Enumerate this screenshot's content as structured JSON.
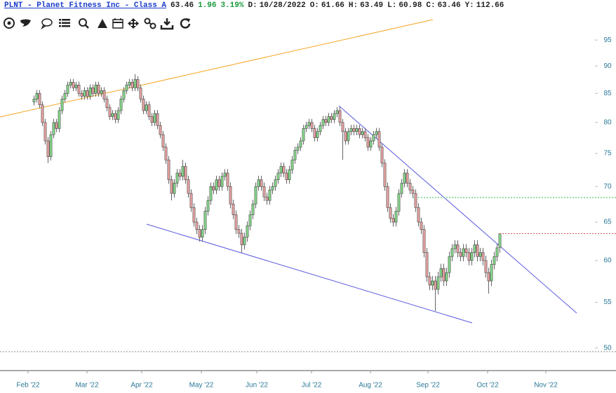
{
  "header": {
    "symbol": "PLNT - Planet Fitness Inc - Class A",
    "last": "63.46",
    "change": "1.96",
    "change_pct": "3.19%",
    "date_label": "D:",
    "date": "10/28/2022",
    "open_label": "O:",
    "open": "61.66",
    "high_label": "H:",
    "high": "63.49",
    "low_label": "L:",
    "low": "60.98",
    "close_label": "C:",
    "close": "63.46",
    "year_label": "Y:",
    "year": "112.66"
  },
  "chart_data": {
    "type": "candlestick",
    "log_y": true,
    "ylim": [
      47.7,
      96.7
    ],
    "yticks": [
      50,
      55,
      60,
      65,
      70,
      75,
      80,
      85,
      90,
      95
    ],
    "xlim": [
      -12,
      200
    ],
    "xticks": [
      {
        "value": -2,
        "label": "Feb '22"
      },
      {
        "value": 19,
        "label": "Mar '22"
      },
      {
        "value": 38.5,
        "label": "Apr '22"
      },
      {
        "value": 59.75,
        "label": "May '22"
      },
      {
        "value": 79.5,
        "label": "Jun '22"
      },
      {
        "value": 99,
        "label": "Jul '22"
      },
      {
        "value": 120,
        "label": "Aug '22"
      },
      {
        "value": 140.5,
        "label": "Sep '22"
      },
      {
        "value": 161.75,
        "label": "Oct '22"
      },
      {
        "value": 182.5,
        "label": "Nov '22"
      }
    ],
    "up_color": "#86d98a",
    "down_color": "#e9a3a3",
    "last_price_color": "#d9534f",
    "open": [
      83.5,
      84,
      85,
      83,
      80,
      77,
      74.5,
      78,
      80,
      79,
      82,
      84,
      85,
      86.5,
      87,
      86,
      86.5,
      85,
      84.5,
      85.5,
      84.5,
      86,
      85,
      86.5,
      85,
      85.5,
      84,
      82.5,
      81,
      81.5,
      80.5,
      82,
      84,
      85.5,
      86.5,
      87,
      86,
      87.5,
      86,
      84,
      82,
      83,
      81,
      80,
      81.5,
      79.5,
      78,
      76,
      74,
      71,
      69,
      70.5,
      72,
      71.5,
      73,
      71,
      69,
      67,
      65,
      64,
      63,
      64,
      66.5,
      68,
      70,
      69.5,
      71,
      70,
      71.5,
      72,
      70,
      67.5,
      66,
      64,
      63.5,
      62,
      63,
      64.5,
      66,
      67.5,
      70,
      71,
      70,
      68.5,
      68,
      69.5,
      70,
      71,
      72,
      73,
      72,
      71,
      72.5,
      74,
      75.5,
      76,
      77,
      79,
      79.5,
      80,
      79,
      77.5,
      78.5,
      79.5,
      80.5,
      80,
      81,
      80.5,
      81.5,
      82,
      80,
      78.5,
      77,
      78.5,
      79,
      78.5,
      79,
      78,
      78.5,
      77.5,
      76,
      77,
      78,
      78.5,
      76,
      73.5,
      70,
      67,
      65.5,
      65,
      66.5,
      69,
      70.5,
      72,
      70.5,
      69.5,
      69,
      67,
      65,
      64,
      61,
      58,
      57,
      57.5,
      56.5,
      58,
      59,
      57.5,
      58.5,
      60.5,
      61.5,
      62,
      61,
      60.5,
      61.5,
      61,
      60,
      61,
      62,
      60.5,
      61,
      60,
      58.5,
      57.5,
      59.5,
      60.5,
      61.66
    ],
    "high": [
      84.6,
      85.6,
      85.6,
      83.6,
      80.6,
      77.6,
      78.6,
      80.6,
      80.6,
      82.6,
      84.6,
      85.6,
      87.1,
      87.6,
      87.6,
      87.1,
      87.1,
      85.6,
      86.1,
      86.1,
      86.6,
      86.6,
      87.1,
      87.1,
      86.1,
      86.1,
      84.6,
      83.1,
      82.1,
      82.1,
      82.6,
      84.6,
      86.1,
      87.1,
      87.6,
      87.6,
      88.5,
      88.1,
      86.6,
      84.6,
      83.6,
      83.6,
      81.6,
      82.1,
      82.1,
      80.1,
      78.6,
      76.6,
      74.6,
      71.6,
      71.1,
      72.6,
      72.6,
      74,
      73.6,
      71.6,
      69.6,
      67.6,
      65.6,
      64.6,
      64.6,
      67.1,
      68.6,
      70.6,
      70.6,
      71.6,
      71.6,
      72.1,
      72.6,
      72.6,
      70.6,
      68.1,
      66.6,
      64.6,
      64.1,
      63.6,
      65.1,
      66.6,
      68.1,
      70.6,
      71.6,
      71.6,
      70.6,
      69.1,
      70.1,
      70.6,
      71.6,
      72.6,
      73.6,
      73.6,
      72.6,
      73.1,
      74.6,
      76.1,
      76.6,
      77.6,
      79.6,
      80.1,
      80.6,
      80.6,
      79.6,
      79.1,
      80.1,
      81.1,
      81.1,
      81.6,
      81.6,
      82.1,
      82.6,
      82.6,
      80.6,
      79.1,
      79.1,
      79.6,
      79.6,
      79.6,
      79.6,
      79.1,
      79.1,
      78.1,
      77.6,
      78.6,
      79.1,
      79.1,
      76.6,
      74.1,
      70.6,
      67.6,
      66.1,
      67.1,
      69.6,
      71.1,
      72.6,
      72.6,
      71.1,
      70.1,
      69.6,
      67.6,
      65.6,
      64.6,
      61.6,
      58.6,
      58.1,
      58.1,
      58.6,
      59.6,
      59.6,
      59.1,
      61.1,
      62.1,
      62.6,
      62.6,
      61.6,
      62.1,
      62.1,
      61.6,
      61.6,
      62.6,
      62.6,
      61.6,
      61.6,
      60.6,
      59.1,
      60.1,
      61.1,
      62.1,
      63.49
    ],
    "low": [
      82.9,
      83.4,
      82.4,
      79.4,
      76.4,
      73.5,
      73.9,
      77.4,
      78.4,
      78.4,
      81.4,
      83.4,
      84.4,
      85.9,
      85.4,
      85.4,
      84.4,
      83.9,
      83.9,
      83.9,
      83.9,
      84.4,
      84.4,
      84.4,
      84.4,
      83.4,
      81.9,
      80.4,
      80.4,
      79.9,
      79.9,
      81.4,
      83.4,
      84.9,
      85.9,
      85.4,
      85.4,
      85.4,
      83.4,
      81.4,
      81.4,
      80.4,
      79.4,
      79.4,
      78.9,
      77.4,
      75.4,
      73.4,
      70.4,
      68,
      68.4,
      69.9,
      70.9,
      70.9,
      70.4,
      68.4,
      66.4,
      64.4,
      63.4,
      62.4,
      62.4,
      63.4,
      65.9,
      67.4,
      68.9,
      68.9,
      69.4,
      69.4,
      70.9,
      69.4,
      66.9,
      65.4,
      63.4,
      62.9,
      61,
      61.4,
      62.4,
      63.9,
      65.4,
      66.9,
      69.4,
      69.4,
      67.9,
      67.4,
      67.4,
      68.9,
      69.4,
      70.4,
      71.4,
      71.4,
      70.4,
      70.4,
      71.9,
      73.4,
      74.9,
      75.4,
      76.4,
      78.4,
      78.9,
      78.4,
      76.9,
      76.9,
      77.9,
      78.9,
      79.4,
      79.4,
      79.9,
      79.9,
      80.9,
      79.4,
      74,
      76.4,
      76.4,
      77.9,
      77.9,
      77.9,
      77.4,
      77.4,
      76.9,
      75.4,
      75.4,
      76.4,
      77.4,
      75.4,
      72.9,
      69.4,
      66.4,
      64.9,
      64.4,
      64.4,
      65.9,
      68.4,
      69.9,
      69.9,
      68.9,
      68.4,
      66.4,
      64.4,
      63.4,
      60.4,
      57.4,
      56.4,
      56.4,
      54,
      55.9,
      57.4,
      56.9,
      56.9,
      57.9,
      59.9,
      60.9,
      60.4,
      59.9,
      59.9,
      60.4,
      59.4,
      59.4,
      60.4,
      59.9,
      59.9,
      59.4,
      57.9,
      56,
      56.9,
      58.9,
      59.9,
      60.98
    ],
    "close": [
      84,
      85,
      83,
      80,
      77,
      74.5,
      78,
      80,
      79,
      82,
      84,
      85,
      86.5,
      87,
      86,
      86.5,
      85,
      84.5,
      85.5,
      84.5,
      86,
      85,
      86.5,
      85,
      85.5,
      84,
      82.5,
      81,
      81.5,
      80.5,
      82,
      84,
      85.5,
      86.5,
      87,
      86,
      87.5,
      86,
      84,
      82,
      83,
      81,
      80,
      81.5,
      79.5,
      78,
      76,
      74,
      71,
      69,
      70.5,
      72,
      71.5,
      73,
      71,
      69,
      67,
      65,
      64,
      63,
      64,
      66.5,
      68,
      70,
      69.5,
      71,
      70,
      71.5,
      72,
      70,
      67.5,
      66,
      64,
      63.5,
      62,
      63,
      64.5,
      66,
      67.5,
      70,
      71,
      70,
      68.5,
      68,
      69.5,
      70,
      71,
      72,
      73,
      72,
      71,
      72.5,
      74,
      75.5,
      76,
      77,
      79,
      79.5,
      80,
      79,
      77.5,
      78.5,
      79.5,
      80.5,
      80,
      81,
      80.5,
      81.5,
      82,
      80,
      78.5,
      77,
      78.5,
      79,
      78.5,
      79,
      78,
      78.5,
      77.5,
      76,
      77,
      78,
      78.5,
      76,
      73.5,
      70,
      67,
      65.5,
      65,
      66.5,
      69,
      70.5,
      72,
      70.5,
      69.5,
      69,
      67,
      65,
      64,
      61,
      58,
      57,
      57.5,
      56.5,
      58,
      59,
      57.5,
      58.5,
      60.5,
      61.5,
      62,
      61,
      60.5,
      61.5,
      61,
      60,
      61,
      62,
      60.5,
      61,
      60,
      58.5,
      57.5,
      59.5,
      60.5,
      61.6,
      63.46
    ]
  }
}
